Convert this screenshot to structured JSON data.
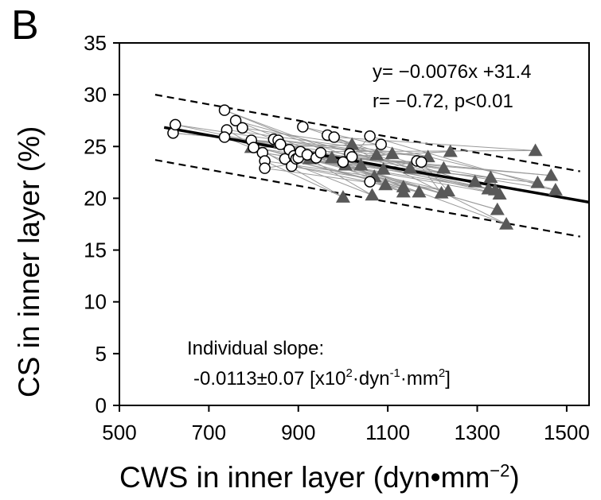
{
  "panel_label": "B",
  "chart_data": {
    "type": "scatter",
    "title": "",
    "xlabel": "CWS in inner layer (dyn•mm",
    "xlabel_exponent": "−2",
    "xlabel_suffix": ")",
    "ylabel": "CS in inner layer (%)",
    "xlim": [
      500,
      1550
    ],
    "ylim": [
      0,
      35
    ],
    "xticks": [
      500,
      700,
      900,
      1100,
      1300,
      1500
    ],
    "yticks": [
      0,
      5,
      10,
      15,
      20,
      25,
      30,
      35
    ],
    "grid": false,
    "colors": {
      "triangle": "#595959",
      "circle_edge": "#000000",
      "pair_line": "#9a9a9a",
      "fit": "#000000"
    },
    "annotations": {
      "equation": "y= −0.0076x +31.4",
      "correlation": "r= −0.72, p<0.01",
      "slope_title": "Individual slope:",
      "slope_value": "-0.0113±0.07 [x10",
      "slope_sup1": "2",
      "slope_mid1": "·dyn",
      "slope_sup2": "-1",
      "slope_mid2": "·mm",
      "slope_sup3": "2",
      "slope_end": "]"
    },
    "regression": {
      "slope": -0.0076,
      "intercept": 31.4,
      "x_range": [
        600,
        1550
      ]
    },
    "confidence_band": [
      {
        "x1": 580,
        "y1": 30.0,
        "x2": 1530,
        "y2": 22.6
      },
      {
        "x1": 580,
        "y1": 23.7,
        "x2": 1530,
        "y2": 16.3
      }
    ],
    "series": [
      {
        "marker": "circle",
        "points": [
          [
            620,
            26.3
          ],
          [
            625,
            27.1
          ],
          [
            735,
            28.5
          ],
          [
            740,
            26.6
          ],
          [
            735,
            25.9
          ],
          [
            760,
            27.5
          ],
          [
            775,
            26.8
          ],
          [
            795,
            25.6
          ],
          [
            800,
            24.9
          ],
          [
            820,
            24.4
          ],
          [
            825,
            23.6
          ],
          [
            825,
            22.9
          ],
          [
            845,
            25.7
          ],
          [
            855,
            25.6
          ],
          [
            860,
            25.2
          ],
          [
            870,
            23.8
          ],
          [
            880,
            24.7
          ],
          [
            885,
            23.1
          ],
          [
            890,
            24.1
          ],
          [
            895,
            23.8
          ],
          [
            900,
            23.9
          ],
          [
            905,
            24.5
          ],
          [
            910,
            26.9
          ],
          [
            920,
            24.2
          ],
          [
            940,
            23.9
          ],
          [
            950,
            24.4
          ],
          [
            965,
            26.1
          ],
          [
            980,
            25.9
          ],
          [
            1000,
            23.5
          ],
          [
            1015,
            24.3
          ],
          [
            1020,
            24.0
          ],
          [
            1060,
            26.0
          ],
          [
            1060,
            21.6
          ],
          [
            1085,
            25.2
          ],
          [
            1165,
            23.6
          ],
          [
            1175,
            23.5
          ]
        ]
      },
      {
        "marker": "triangle",
        "points": [
          [
            795,
            24.9
          ],
          [
            860,
            25.4
          ],
          [
            925,
            23.8
          ],
          [
            975,
            23.9
          ],
          [
            1000,
            20.1
          ],
          [
            1005,
            23.2
          ],
          [
            1020,
            25.2
          ],
          [
            1040,
            23.2
          ],
          [
            1065,
            20.3
          ],
          [
            1070,
            22.1
          ],
          [
            1075,
            24.2
          ],
          [
            1090,
            22.8
          ],
          [
            1095,
            21.3
          ],
          [
            1110,
            24.3
          ],
          [
            1135,
            21.1
          ],
          [
            1135,
            20.6
          ],
          [
            1150,
            22.9
          ],
          [
            1170,
            20.6
          ],
          [
            1190,
            24.0
          ],
          [
            1220,
            20.5
          ],
          [
            1225,
            22.9
          ],
          [
            1235,
            20.7
          ],
          [
            1240,
            24.5
          ],
          [
            1295,
            21.6
          ],
          [
            1325,
            20.9
          ],
          [
            1330,
            22.0
          ],
          [
            1340,
            20.8
          ],
          [
            1345,
            18.9
          ],
          [
            1350,
            20.4
          ],
          [
            1365,
            17.5
          ],
          [
            1430,
            24.6
          ],
          [
            1435,
            21.5
          ],
          [
            1465,
            22.2
          ],
          [
            1475,
            20.8
          ]
        ]
      }
    ],
    "pairs": [
      [
        0,
        1,
        18
      ],
      [
        1,
        3,
        10
      ],
      [
        2,
        11,
        7
      ],
      [
        3,
        18,
        4
      ],
      [
        4,
        8,
        12
      ],
      [
        5,
        9,
        16
      ],
      [
        6,
        14,
        6
      ],
      [
        7,
        20,
        11
      ],
      [
        8,
        23,
        2
      ],
      [
        9,
        24,
        5
      ],
      [
        10,
        4,
        9
      ],
      [
        11,
        12,
        3
      ],
      [
        12,
        15,
        13
      ],
      [
        13,
        29,
        8
      ],
      [
        14,
        26,
        19
      ],
      [
        15,
        17,
        14
      ],
      [
        16,
        27,
        20
      ],
      [
        17,
        21,
        17
      ],
      [
        18,
        19,
        21
      ],
      [
        19,
        25,
        22
      ],
      [
        20,
        28,
        23
      ],
      [
        21,
        30,
        1
      ],
      [
        22,
        31,
        24
      ],
      [
        23,
        32,
        26
      ],
      [
        24,
        22,
        27
      ],
      [
        25,
        33,
        28
      ],
      [
        26,
        16,
        29
      ],
      [
        27,
        10,
        30
      ],
      [
        28,
        13,
        31
      ],
      [
        29,
        6,
        25
      ],
      [
        30,
        2,
        32
      ],
      [
        31,
        5,
        33
      ],
      [
        32,
        7,
        15
      ],
      [
        33,
        0,
        0
      ],
      [
        34,
        11,
        19
      ],
      [
        35,
        3,
        21
      ]
    ]
  }
}
